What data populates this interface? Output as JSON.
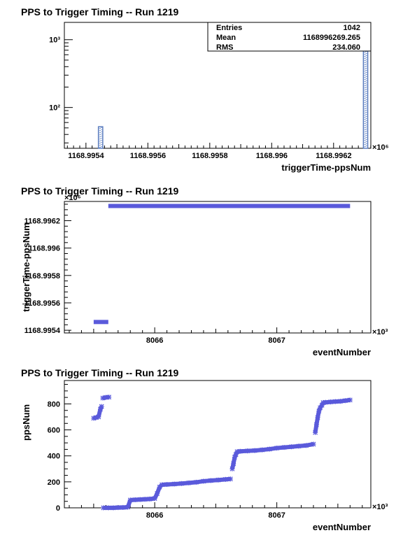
{
  "chart_data": [
    {
      "type": "bar",
      "title": "PPS to Trigger Timing -- Run 1219",
      "xlabel": "triggerTime-ppsNum",
      "ylabel": "",
      "x_multiplier": "×10⁶",
      "log_y": true,
      "xlim": [
        1168.99533,
        1168.99632
      ],
      "ylim": [
        25,
        1800
      ],
      "x_ticks": [
        1168.9954,
        1168.9956,
        1168.9958,
        1168.996,
        1168.9962
      ],
      "x_tick_labels": [
        "1168.9954",
        "1168.9956",
        "1168.9958",
        "1168.996",
        "1168.9962"
      ],
      "y_ticks": [
        100,
        1000
      ],
      "y_tick_labels": [
        "10²",
        "10³"
      ],
      "bars": [
        {
          "x0": 1168.99544,
          "x1": 1168.995454,
          "value": 52
        },
        {
          "x0": 1168.996296,
          "x1": 1168.99631,
          "value": 990
        }
      ],
      "stats": {
        "entries_label": "Entries",
        "entries_value": "1042",
        "mean_label": "Mean",
        "mean_value": "1168996269.265",
        "rms_label": "RMS",
        "rms_value": "234.060"
      },
      "colors": {
        "bar": "#5b7dbf",
        "bar_fill": "#ffffff"
      }
    },
    {
      "type": "scatter",
      "title": "PPS to Trigger Timing -- Run 1219",
      "xlabel": "eventNumber",
      "ylabel": "triggerTime-ppsNum",
      "x_multiplier": "×10³",
      "y_multiplier": "×10⁶",
      "xlim": [
        8065.26,
        8067.77
      ],
      "ylim": [
        1168.99538,
        1168.99634
      ],
      "x_ticks": [
        8066,
        8067
      ],
      "x_tick_labels": [
        "8066",
        "8067"
      ],
      "y_ticks": [
        1168.9954,
        1168.9956,
        1168.9958,
        1168.996,
        1168.9962
      ],
      "y_tick_labels": [
        "1168.9954",
        "1168.9956",
        "1168.9958",
        "1168.996",
        "1168.9962"
      ],
      "segments": [
        {
          "x0": 8065.5,
          "x1": 8065.62,
          "y": 1168.99546
        },
        {
          "x0": 8065.62,
          "x1": 8067.6,
          "y": 1168.996307
        }
      ],
      "colors": {
        "marker": "#5a5adb"
      }
    },
    {
      "type": "scatter",
      "title": "PPS to Trigger Timing -- Run 1219",
      "xlabel": "eventNumber",
      "ylabel": "ppsNum",
      "x_multiplier": "×10³",
      "xlim": [
        8065.26,
        8067.77
      ],
      "ylim": [
        0,
        980
      ],
      "x_ticks": [
        8066,
        8067
      ],
      "x_tick_labels": [
        "8066",
        "8067"
      ],
      "y_ticks": [
        0,
        200,
        400,
        600,
        800
      ],
      "y_tick_labels": [
        "0",
        "200",
        "400",
        "600",
        "800"
      ],
      "points": [
        {
          "x": 8065.5,
          "y": 690
        },
        {
          "x": 8065.52,
          "y": 695
        },
        {
          "x": 8065.54,
          "y": 700
        },
        {
          "x": 8065.555,
          "y": 760
        },
        {
          "x": 8065.565,
          "y": 780
        },
        {
          "x": 8065.575,
          "y": 845
        },
        {
          "x": 8065.6,
          "y": 850
        },
        {
          "x": 8065.625,
          "y": 852
        },
        {
          "x": 8065.58,
          "y": 0
        },
        {
          "x": 8065.62,
          "y": 0
        },
        {
          "x": 8065.66,
          "y": 0
        },
        {
          "x": 8065.7,
          "y": 2
        },
        {
          "x": 8065.74,
          "y": 3
        },
        {
          "x": 8065.78,
          "y": 5
        },
        {
          "x": 8065.8,
          "y": 60
        },
        {
          "x": 8065.84,
          "y": 62
        },
        {
          "x": 8065.88,
          "y": 64
        },
        {
          "x": 8065.92,
          "y": 66
        },
        {
          "x": 8065.96,
          "y": 68
        },
        {
          "x": 8066.0,
          "y": 72
        },
        {
          "x": 8066.02,
          "y": 110
        },
        {
          "x": 8066.04,
          "y": 160
        },
        {
          "x": 8066.06,
          "y": 178
        },
        {
          "x": 8066.1,
          "y": 180
        },
        {
          "x": 8066.16,
          "y": 183
        },
        {
          "x": 8066.22,
          "y": 187
        },
        {
          "x": 8066.28,
          "y": 192
        },
        {
          "x": 8066.34,
          "y": 197
        },
        {
          "x": 8066.4,
          "y": 205
        },
        {
          "x": 8066.46,
          "y": 210
        },
        {
          "x": 8066.52,
          "y": 214
        },
        {
          "x": 8066.58,
          "y": 219
        },
        {
          "x": 8066.62,
          "y": 222
        },
        {
          "x": 8066.635,
          "y": 300
        },
        {
          "x": 8066.645,
          "y": 340
        },
        {
          "x": 8066.655,
          "y": 390
        },
        {
          "x": 8066.665,
          "y": 410
        },
        {
          "x": 8066.675,
          "y": 432
        },
        {
          "x": 8066.7,
          "y": 435
        },
        {
          "x": 8066.76,
          "y": 438
        },
        {
          "x": 8066.82,
          "y": 441
        },
        {
          "x": 8066.88,
          "y": 446
        },
        {
          "x": 8066.94,
          "y": 452
        },
        {
          "x": 8067.0,
          "y": 460
        },
        {
          "x": 8067.06,
          "y": 465
        },
        {
          "x": 8067.12,
          "y": 470
        },
        {
          "x": 8067.18,
          "y": 475
        },
        {
          "x": 8067.24,
          "y": 480
        },
        {
          "x": 8067.3,
          "y": 490
        },
        {
          "x": 8067.315,
          "y": 580
        },
        {
          "x": 8067.325,
          "y": 640
        },
        {
          "x": 8067.335,
          "y": 695
        },
        {
          "x": 8067.345,
          "y": 745
        },
        {
          "x": 8067.355,
          "y": 770
        },
        {
          "x": 8067.37,
          "y": 790
        },
        {
          "x": 8067.38,
          "y": 810
        },
        {
          "x": 8067.4,
          "y": 812
        },
        {
          "x": 8067.44,
          "y": 815
        },
        {
          "x": 8067.48,
          "y": 818
        },
        {
          "x": 8067.52,
          "y": 820
        },
        {
          "x": 8067.56,
          "y": 825
        },
        {
          "x": 8067.6,
          "y": 830
        }
      ],
      "colors": {
        "marker": "#5a5adb"
      }
    }
  ]
}
